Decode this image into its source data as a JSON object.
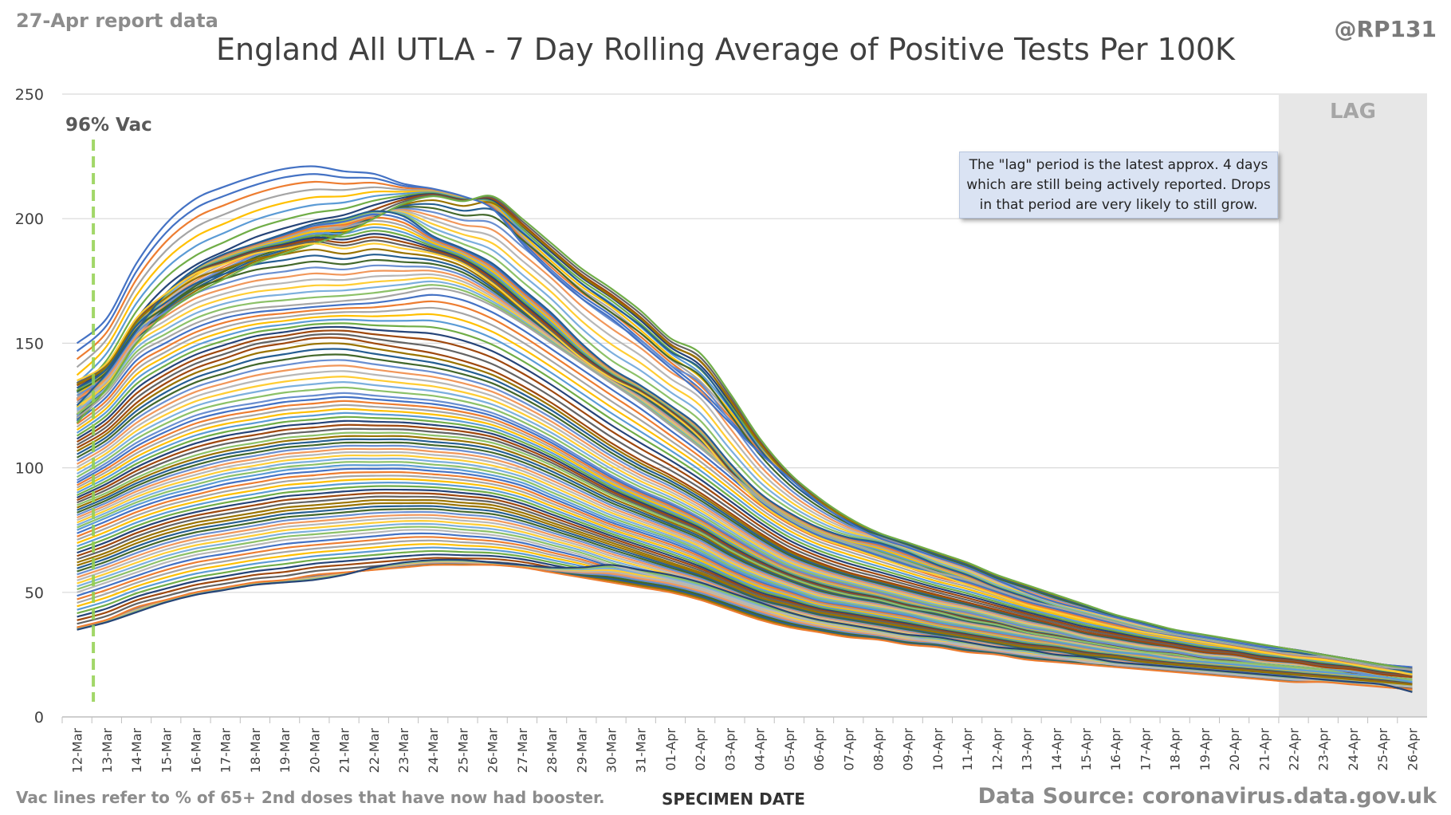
{
  "header": {
    "report_label": "27-Apr report data",
    "handle": "@RP131"
  },
  "footer": {
    "footnote": "Vac lines refer to % of 65+ 2nd doses that have now had booster.",
    "source": "Data Source: coronavirus.data.gov.uk"
  },
  "annotation": {
    "lines": [
      "The \"lag\" period is the latest approx. 4 days",
      "which are still being actively reported.  Drops",
      "in that period are very likely to still grow."
    ]
  },
  "colors": {
    "grid": "#d9d9d9",
    "lag_band": "#e7e7e7",
    "lag_text": "#a6a6a6",
    "vac_line": "#92d14f",
    "axis_text": "#404040",
    "palette": [
      "#4472c4",
      "#ed7d31",
      "#a5a5a5",
      "#ffc000",
      "#5b9bd5",
      "#70ad47",
      "#264478",
      "#9e480e",
      "#636363",
      "#997300",
      "#255e91",
      "#43682b",
      "#698ed0",
      "#f1975a",
      "#b7b7b7",
      "#ffcd33",
      "#7cafdd",
      "#8cc168"
    ]
  },
  "chart_data": {
    "type": "line",
    "title": "England All UTLA - 7 Day Rolling Average of Positive Tests Per 100K",
    "xlabel": "SPECIMEN DATE",
    "ylabel": "",
    "ylim": [
      0,
      250
    ],
    "yticks": [
      0,
      50,
      100,
      150,
      200,
      250
    ],
    "grid": true,
    "categories": [
      "12-Mar",
      "13-Mar",
      "14-Mar",
      "15-Mar",
      "16-Mar",
      "17-Mar",
      "18-Mar",
      "19-Mar",
      "20-Mar",
      "21-Mar",
      "22-Mar",
      "23-Mar",
      "24-Mar",
      "25-Mar",
      "26-Mar",
      "27-Mar",
      "28-Mar",
      "29-Mar",
      "30-Mar",
      "31-Mar",
      "01-Apr",
      "02-Apr",
      "03-Apr",
      "04-Apr",
      "05-Apr",
      "06-Apr",
      "07-Apr",
      "08-Apr",
      "09-Apr",
      "10-Apr",
      "11-Apr",
      "12-Apr",
      "13-Apr",
      "14-Apr",
      "15-Apr",
      "16-Apr",
      "17-Apr",
      "18-Apr",
      "19-Apr",
      "20-Apr",
      "21-Apr",
      "22-Apr",
      "23-Apr",
      "24-Apr",
      "25-Apr",
      "26-Apr"
    ],
    "lag_band": {
      "from": "22-Apr",
      "to": "26-Apr",
      "label": "LAG"
    },
    "vac_line": {
      "x": "13-Mar",
      "label": "96% Vac"
    },
    "series_note": "About 150 UTLA series; representative values for the highest, upper, middle and lowest curves shown",
    "series": [
      {
        "values": [
          150,
          160,
          182,
          198,
          208,
          213,
          217,
          220,
          221,
          219,
          218,
          214,
          212,
          209,
          204,
          190,
          178,
          168,
          160,
          150,
          140,
          130,
          118,
          106,
          96,
          86,
          78,
          72,
          68,
          64,
          60,
          55,
          50,
          46,
          43,
          40,
          37,
          34,
          32,
          30,
          28,
          27,
          25,
          23,
          21,
          20
        ]
      },
      {
        "values": [
          118,
          132,
          150,
          162,
          170,
          176,
          182,
          186,
          190,
          194,
          200,
          206,
          209,
          207,
          209,
          200,
          190,
          180,
          172,
          163,
          152,
          146,
          130,
          112,
          98,
          88,
          80,
          74,
          70,
          66,
          62,
          57,
          53,
          49,
          45,
          41,
          38,
          35,
          33,
          31,
          29,
          27,
          25,
          23,
          21,
          19
        ]
      },
      {
        "values": [
          125,
          138,
          155,
          170,
          180,
          186,
          190,
          194,
          198,
          200,
          203,
          201,
          193,
          188,
          182,
          172,
          162,
          150,
          140,
          133,
          125,
          116,
          102,
          90,
          82,
          76,
          72,
          70,
          66,
          61,
          57,
          52,
          48,
          44,
          41,
          38,
          35,
          33,
          31,
          29,
          27,
          26,
          24,
          22,
          20,
          18
        ]
      },
      {
        "values": [
          135,
          142,
          160,
          170,
          178,
          182,
          186,
          188,
          190,
          188,
          190,
          188,
          186,
          182,
          174,
          164,
          154,
          144,
          136,
          130,
          122,
          112,
          98,
          86,
          78,
          72,
          68,
          64,
          60,
          57,
          53,
          49,
          45,
          42,
          39,
          36,
          34,
          32,
          30,
          28,
          26,
          24,
          23,
          21,
          19,
          17
        ]
      },
      {
        "values": [
          120,
          130,
          145,
          152,
          158,
          162,
          164,
          165,
          166,
          167,
          168,
          170,
          172,
          170,
          165,
          158,
          150,
          142,
          134,
          126,
          117,
          108,
          98,
          88,
          80,
          74,
          70,
          66,
          62,
          58,
          55,
          51,
          47,
          44,
          41,
          38,
          35,
          33,
          31,
          29,
          27,
          25,
          24,
          22,
          20,
          19
        ]
      },
      {
        "values": [
          108,
          115,
          126,
          134,
          140,
          144,
          148,
          150,
          152,
          152,
          150,
          148,
          146,
          143,
          139,
          133,
          126,
          118,
          110,
          103,
          97,
          90,
          82,
          74,
          67,
          62,
          58,
          55,
          52,
          49,
          46,
          43,
          40,
          37,
          34,
          32,
          30,
          28,
          26,
          25,
          23,
          22,
          20,
          19,
          17,
          16
        ]
      },
      {
        "values": [
          95,
          102,
          110,
          116,
          121,
          124,
          126,
          128,
          129,
          130,
          129,
          128,
          127,
          125,
          122,
          117,
          111,
          104,
          97,
          91,
          86,
          80,
          73,
          66,
          60,
          56,
          53,
          50,
          47,
          44,
          42,
          39,
          36,
          34,
          31,
          29,
          27,
          26,
          24,
          23,
          21,
          20,
          19,
          18,
          16,
          15
        ]
      },
      {
        "values": [
          85,
          90,
          96,
          101,
          105,
          108,
          110,
          112,
          113,
          114,
          114,
          114,
          113,
          112,
          110,
          106,
          101,
          95,
          89,
          84,
          79,
          74,
          67,
          61,
          56,
          52,
          49,
          47,
          44,
          42,
          39,
          37,
          34,
          32,
          30,
          28,
          26,
          25,
          23,
          22,
          21,
          20,
          19,
          17,
          16,
          15
        ]
      },
      {
        "values": [
          75,
          80,
          85,
          89,
          92,
          95,
          97,
          99,
          100,
          101,
          101,
          101,
          100,
          99,
          97,
          94,
          89,
          84,
          79,
          75,
          71,
          66,
          60,
          55,
          51,
          47,
          45,
          43,
          41,
          38,
          36,
          34,
          32,
          30,
          28,
          26,
          25,
          23,
          22,
          21,
          20,
          19,
          18,
          17,
          16,
          14
        ]
      },
      {
        "values": [
          62,
          66,
          71,
          75,
          78,
          80,
          82,
          84,
          85,
          86,
          87,
          87,
          87,
          86,
          85,
          82,
          78,
          74,
          70,
          66,
          62,
          58,
          53,
          48,
          45,
          42,
          40,
          38,
          36,
          34,
          32,
          30,
          28,
          27,
          25,
          24,
          22,
          21,
          20,
          19,
          18,
          17,
          16,
          15,
          14,
          13
        ]
      },
      {
        "values": [
          50,
          54,
          58,
          62,
          65,
          67,
          69,
          71,
          72,
          73,
          74,
          75,
          75,
          74,
          73,
          71,
          68,
          65,
          61,
          58,
          55,
          52,
          48,
          44,
          41,
          38,
          36,
          34,
          32,
          30,
          29,
          27,
          25,
          24,
          22,
          21,
          20,
          19,
          18,
          17,
          16,
          15,
          15,
          14,
          13,
          12
        ]
      },
      {
        "values": [
          36,
          39,
          44,
          47,
          50,
          52,
          54,
          55,
          57,
          58,
          59,
          60,
          61,
          61,
          61,
          60,
          58,
          56,
          54,
          52,
          50,
          47,
          43,
          39,
          36,
          34,
          32,
          31,
          29,
          28,
          26,
          25,
          23,
          22,
          21,
          20,
          19,
          18,
          17,
          16,
          15,
          14,
          14,
          13,
          12,
          11
        ]
      },
      {
        "values": [
          35,
          38,
          42,
          46,
          49,
          51,
          53,
          54,
          55,
          57,
          60,
          62,
          63,
          63,
          62,
          61,
          60,
          60,
          61,
          59,
          57,
          54,
          50,
          46,
          42,
          39,
          37,
          35,
          33,
          32,
          30,
          28,
          27,
          25,
          24,
          22,
          21,
          20,
          19,
          18,
          17,
          16,
          15,
          14,
          13,
          10
        ]
      }
    ]
  }
}
